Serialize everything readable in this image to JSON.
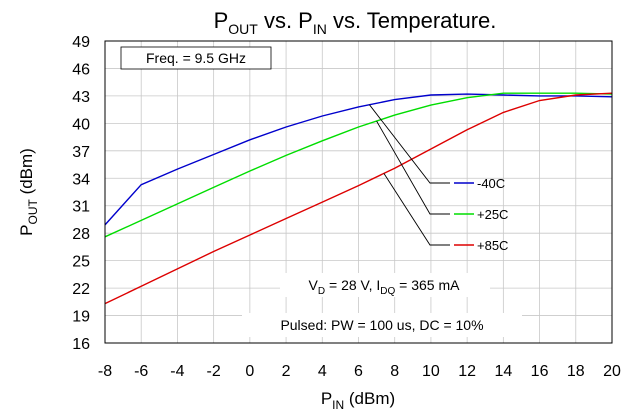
{
  "chart_data": {
    "type": "line",
    "title": {
      "main": "P",
      "sub1": "OUT",
      "mid": " vs. P",
      "sub2": "IN",
      "tail": " vs. Temperature."
    },
    "xlabel": {
      "main": "P",
      "sub": "IN",
      "tail": " (dBm)"
    },
    "ylabel": {
      "main": "P",
      "sub": "OUT",
      "tail": " (dBm)"
    },
    "xlim": [
      -8,
      20
    ],
    "ylim": [
      16,
      49
    ],
    "x_ticks": [
      -8,
      -6,
      -4,
      -2,
      0,
      2,
      4,
      6,
      8,
      10,
      12,
      14,
      16,
      18,
      20
    ],
    "y_ticks": [
      16,
      19,
      22,
      25,
      28,
      31,
      34,
      37,
      40,
      43,
      46,
      49
    ],
    "grid": true,
    "legend_position": "right",
    "annotations": {
      "freq": "Freq. = 9.5 GHz",
      "bias": {
        "v": "V",
        "v_sub": "D",
        "v_val": " = 28 V, I",
        "i_sub": "DQ",
        "i_val": " = 365 mA"
      },
      "pulse": "Pulsed: PW = 100 us, DC = 10%"
    },
    "series": [
      {
        "name": "-40C",
        "color": "#0000cc",
        "x": [
          -8,
          -6,
          -4,
          -2,
          0,
          2,
          4,
          6,
          8,
          10,
          12,
          14,
          16,
          18,
          20
        ],
        "y": [
          28.9,
          33.3,
          35.0,
          36.6,
          38.2,
          39.6,
          40.8,
          41.8,
          42.6,
          43.1,
          43.2,
          43.1,
          43.0,
          43.0,
          42.9
        ]
      },
      {
        "name": "+25C",
        "color": "#00dd00",
        "x": [
          -8,
          -6,
          -4,
          -2,
          0,
          2,
          4,
          6,
          8,
          10,
          12,
          14,
          16,
          18,
          20
        ],
        "y": [
          27.6,
          29.4,
          31.2,
          33.0,
          34.8,
          36.5,
          38.1,
          39.6,
          40.9,
          42.0,
          42.8,
          43.3,
          43.3,
          43.3,
          43.2
        ]
      },
      {
        "name": "+85C",
        "color": "#dd0000",
        "x": [
          -8,
          -6,
          -4,
          -2,
          0,
          2,
          4,
          6,
          8,
          10,
          12,
          14,
          16,
          18,
          20
        ],
        "y": [
          20.3,
          22.2,
          24.1,
          26.0,
          27.8,
          29.6,
          31.4,
          33.2,
          35.1,
          37.2,
          39.3,
          41.2,
          42.5,
          43.1,
          43.3
        ]
      }
    ]
  }
}
